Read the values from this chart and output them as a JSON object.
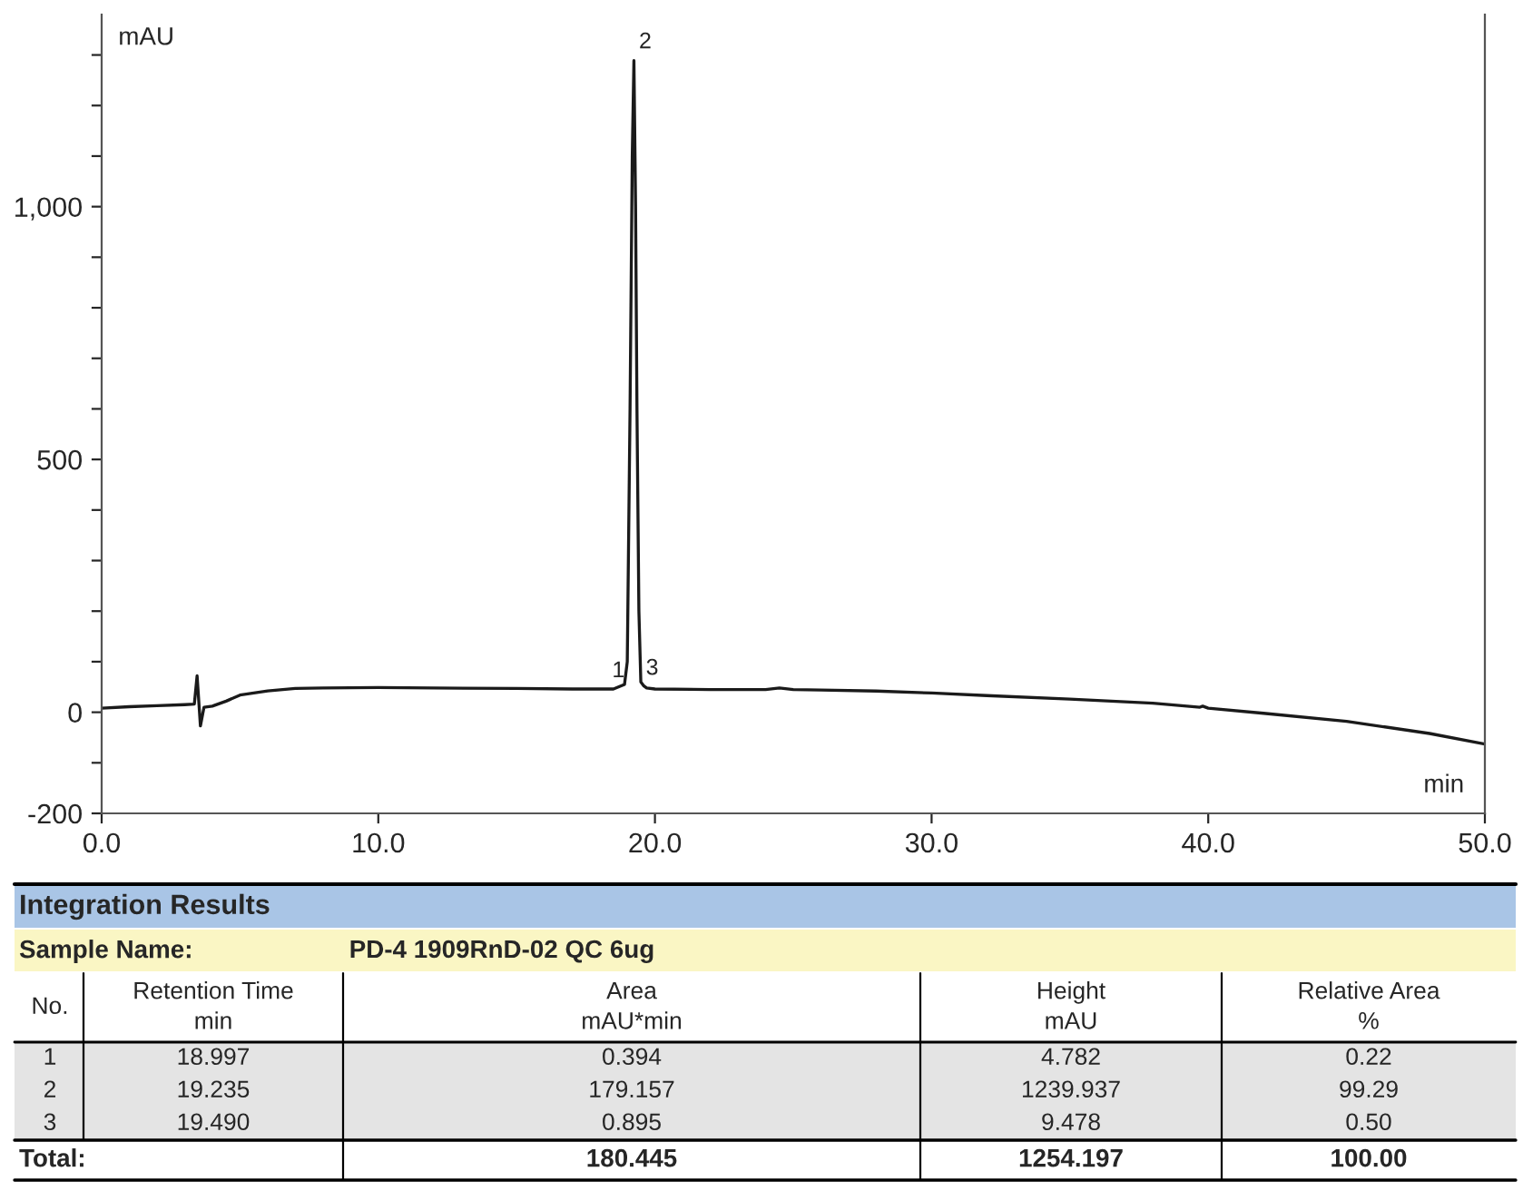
{
  "chart_data": {
    "type": "line",
    "xlabel": "min",
    "ylabel": "mAU",
    "x": [
      0,
      1,
      2,
      3,
      3.35,
      3.45,
      3.57,
      3.7,
      4,
      4.5,
      5,
      5.5,
      6,
      7,
      8,
      10,
      12,
      15,
      17,
      18.5,
      18.9,
      19.0,
      19.1,
      19.18,
      19.24,
      19.3,
      19.35,
      19.42,
      19.49,
      19.6,
      19.7,
      20,
      22,
      24,
      24.5,
      25,
      26,
      28,
      30,
      32,
      35,
      38,
      39.7,
      39.8,
      40,
      42,
      45,
      48,
      50
    ],
    "series": [
      {
        "color": "#1a1a1a",
        "values": [
          8,
          11,
          13,
          15,
          16,
          72,
          -27,
          10,
          12,
          22,
          34,
          38,
          42,
          47,
          48,
          49,
          48,
          47,
          46,
          46,
          55,
          100,
          600,
          1100,
          1289,
          1000,
          600,
          200,
          60,
          52,
          48,
          46,
          45,
          45,
          48,
          45,
          44,
          42,
          38,
          33,
          26,
          18,
          10,
          12,
          8,
          -2,
          -18,
          -42,
          -63
        ]
      }
    ],
    "xlim": [
      0,
      50
    ],
    "xticks": [
      {
        "value": 0,
        "label": "0.0"
      },
      {
        "value": 10,
        "label": "10.0"
      },
      {
        "value": 20,
        "label": "20.0"
      },
      {
        "value": 30,
        "label": "30.0"
      },
      {
        "value": 40,
        "label": "40.0"
      },
      {
        "value": 50,
        "label": "50.0"
      }
    ],
    "ylim": [
      -200,
      1380
    ],
    "yticks": [
      -200,
      {
        "value": -100,
        "label": null
      },
      0,
      {
        "value": 100,
        "label": null
      },
      {
        "value": 200,
        "label": null
      },
      {
        "value": 300,
        "label": null
      },
      {
        "value": 400,
        "label": null
      },
      500,
      {
        "value": 600,
        "label": null
      },
      {
        "value": 700,
        "label": null
      },
      {
        "value": 800,
        "label": null
      },
      {
        "value": 900,
        "label": null
      },
      {
        "value": 1000,
        "label": "1,000"
      },
      {
        "value": 1100,
        "label": null
      },
      {
        "value": 1200,
        "label": null
      },
      {
        "value": 1300,
        "label": null
      }
    ],
    "grid": false,
    "legend": false,
    "annotations": [
      {
        "text": "2",
        "x": 19.24,
        "y": 1289
      },
      {
        "text": "1",
        "x": 18.997,
        "y": 55
      },
      {
        "text": "3",
        "x": 19.49,
        "y": 60
      },
      "Integration Results",
      "Sample Name:",
      "PD-4 1909RnD-02 QC 6ug",
      "No.",
      "Retention Time\nmin",
      "Area\nmAU*min",
      "Height\nmAU",
      "Relative Area\n%",
      "1",
      "18.997",
      "0.394",
      "4.782",
      "0.22",
      "2",
      "19.235",
      "179.157",
      "1239.937",
      "99.29",
      "3",
      "19.490",
      "0.895",
      "9.478",
      "0.50",
      "Total:",
      "180.445",
      "1254.197",
      "100.00"
    ]
  }
}
